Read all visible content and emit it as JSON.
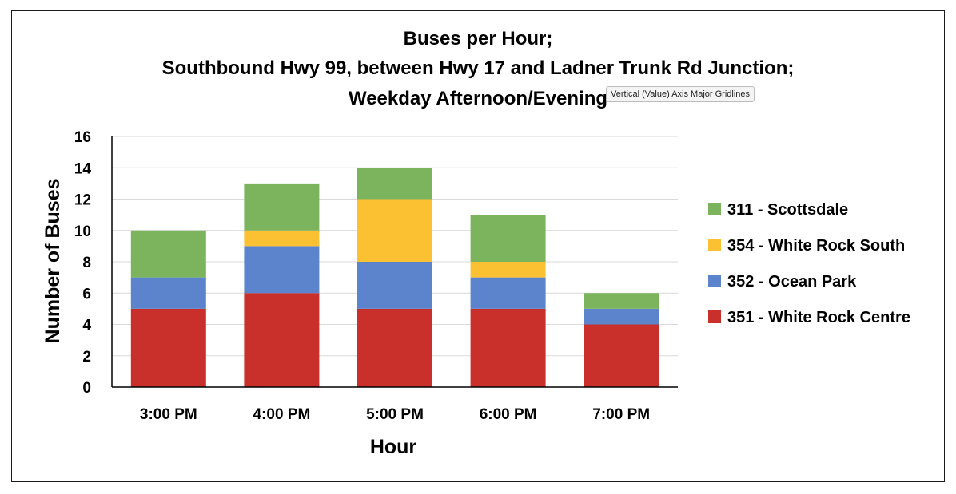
{
  "tooltip": "Vertical (Value) Axis Major Gridlines",
  "chart_data": {
    "type": "bar",
    "stacked": true,
    "title": [
      "Buses per Hour;",
      "Southbound Hwy 99, between Hwy 17 and Ladner Trunk Rd Junction;",
      "Weekday Afternoon/Evening"
    ],
    "xlabel": "Hour",
    "ylabel": "Number of Buses",
    "ylim": [
      0,
      16
    ],
    "yticks": [
      0,
      2,
      4,
      6,
      8,
      10,
      12,
      14,
      16
    ],
    "grid": true,
    "legend_position": "right",
    "categories": [
      "3:00 PM",
      "4:00 PM",
      "5:00 PM",
      "6:00 PM",
      "7:00 PM"
    ],
    "series": [
      {
        "name": "351 - White Rock Centre",
        "color": "#c9302c",
        "values": [
          5,
          6,
          5,
          5,
          4
        ]
      },
      {
        "name": "352 - Ocean Park",
        "color": "#5b84cc",
        "values": [
          2,
          3,
          3,
          2,
          1
        ]
      },
      {
        "name": "354 - White Rock South",
        "color": "#fbc132",
        "values": [
          0,
          1,
          4,
          1,
          0
        ]
      },
      {
        "name": "311 - Scottsdale",
        "color": "#7cb45e",
        "values": [
          3,
          3,
          2,
          3,
          1
        ]
      }
    ],
    "legend_order": [
      "311 - Scottsdale",
      "354 - White Rock South",
      "352 - Ocean Park",
      "351 - White Rock Centre"
    ]
  }
}
